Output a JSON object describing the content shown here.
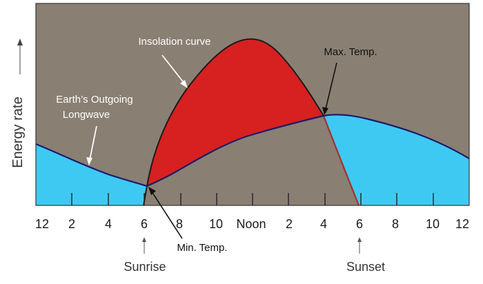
{
  "y_axis": {
    "label": "Energy rate"
  },
  "x_axis": {
    "ticks": [
      "12",
      "2",
      "4",
      "6",
      "8",
      "10",
      "Noon",
      "2",
      "4",
      "6",
      "8",
      "10",
      "12"
    ]
  },
  "labels": {
    "insolation": "Insolation curve",
    "outgoing_line1": "Earth’s Outgoing",
    "outgoing_line2": "Longwave",
    "max_temp": "Max. Temp.",
    "min_temp": "Min. Temp.",
    "sunrise": "Sunrise",
    "sunset": "Sunset"
  },
  "colors": {
    "background": "#8a7f73",
    "longwave_fill": "#3ec9f2",
    "insolation_fill": "#d72020",
    "curve_stroke": "#1b1b6a"
  }
}
